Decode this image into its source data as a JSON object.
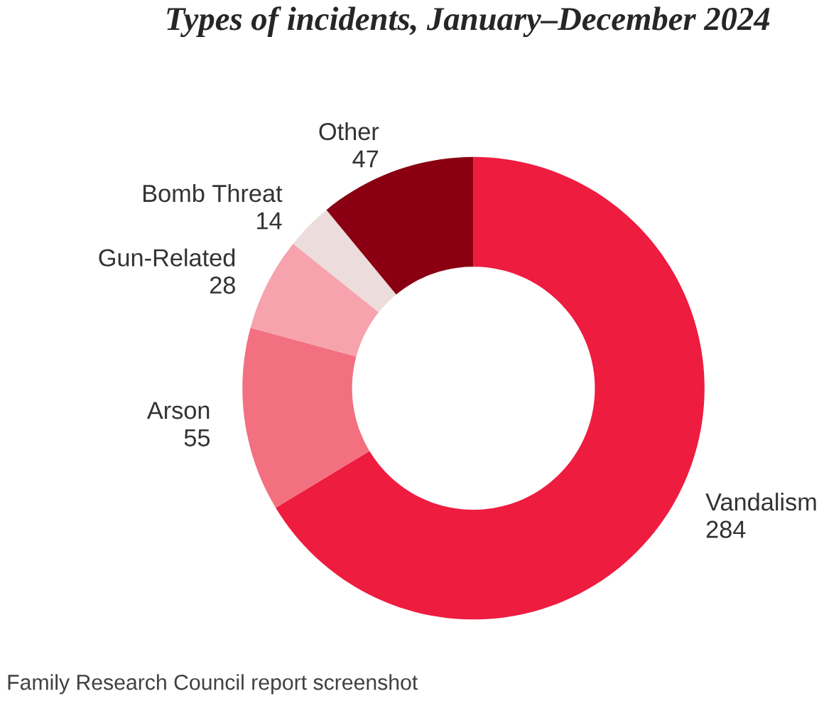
{
  "chart_data": {
    "type": "donut",
    "title": "Types of incidents, January–December 2024",
    "categories": [
      "Vandalism",
      "Arson",
      "Gun-Related",
      "Bomb Threat",
      "Other"
    ],
    "values": [
      284,
      55,
      28,
      14,
      47
    ],
    "colors": [
      "#ee1c3f",
      "#f2707f",
      "#f6a3ad",
      "#ecdcdc",
      "#8a0012"
    ],
    "data_labels": true,
    "annotations": [
      "Family Research Council report screenshot"
    ]
  }
}
